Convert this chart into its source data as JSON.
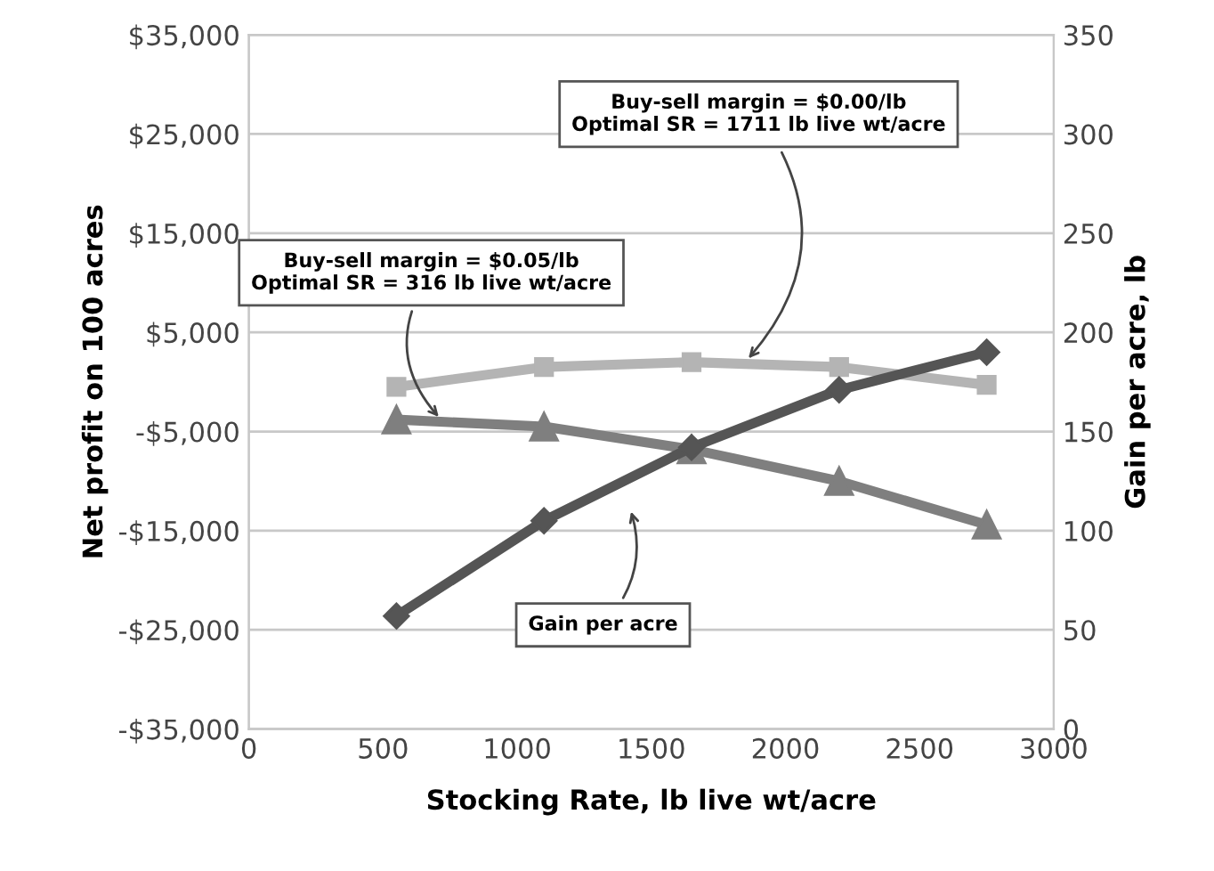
{
  "chart_data": {
    "type": "line",
    "xlabel": "Stocking Rate, lb live wt/acre",
    "ylabel": "Net profit on 100 acres",
    "y2label": "Gain per acre, lb",
    "x": [
      550,
      1100,
      1650,
      2200,
      2750
    ],
    "series": [
      {
        "color": "#b4b4b4",
        "marker": "square",
        "values": [
          -500,
          1500,
          2000,
          1500,
          -300
        ]
      },
      {
        "color": "#7f7f7f",
        "marker": "triangle",
        "values": [
          -3800,
          -4500,
          -6800,
          -10000,
          -14400
        ]
      },
      {
        "color": "#555555",
        "marker": "diamond",
        "axis": "y2",
        "values": [
          57,
          105,
          142,
          171,
          190
        ]
      }
    ],
    "xlim": [
      0,
      3000
    ],
    "xticks": [
      0,
      500,
      1000,
      1500,
      2000,
      2500,
      3000
    ],
    "ylim": [
      -35000,
      35000
    ],
    "yticks": [
      {
        "value": -35000,
        "label": "-$35,000"
      },
      {
        "value": -25000,
        "label": "-$25,000"
      },
      {
        "value": -15000,
        "label": "-$15,000"
      },
      {
        "value": -5000,
        "label": "-$5,000"
      },
      {
        "value": 5000,
        "label": "$5,000"
      },
      {
        "value": 15000,
        "label": "$15,000"
      },
      {
        "value": 25000,
        "label": "$25,000"
      },
      {
        "value": 35000,
        "label": "$35,000"
      }
    ],
    "y2lim": [
      0,
      350
    ],
    "y2ticks": [
      0,
      50,
      100,
      150,
      200,
      250,
      300,
      350
    ],
    "grid": "y",
    "annotations": [
      {
        "text": "Buy-sell margin = $0.00/lb\nOptimal SR = 1711 lb live wt/acre",
        "x": 1850,
        "y": 2000
      },
      {
        "text": "Buy-sell margin = $0.05/lb\nOptimal SR = 316 lb live wt/acre",
        "x": 720,
        "y": -3900
      },
      "Gain per acre"
    ]
  }
}
